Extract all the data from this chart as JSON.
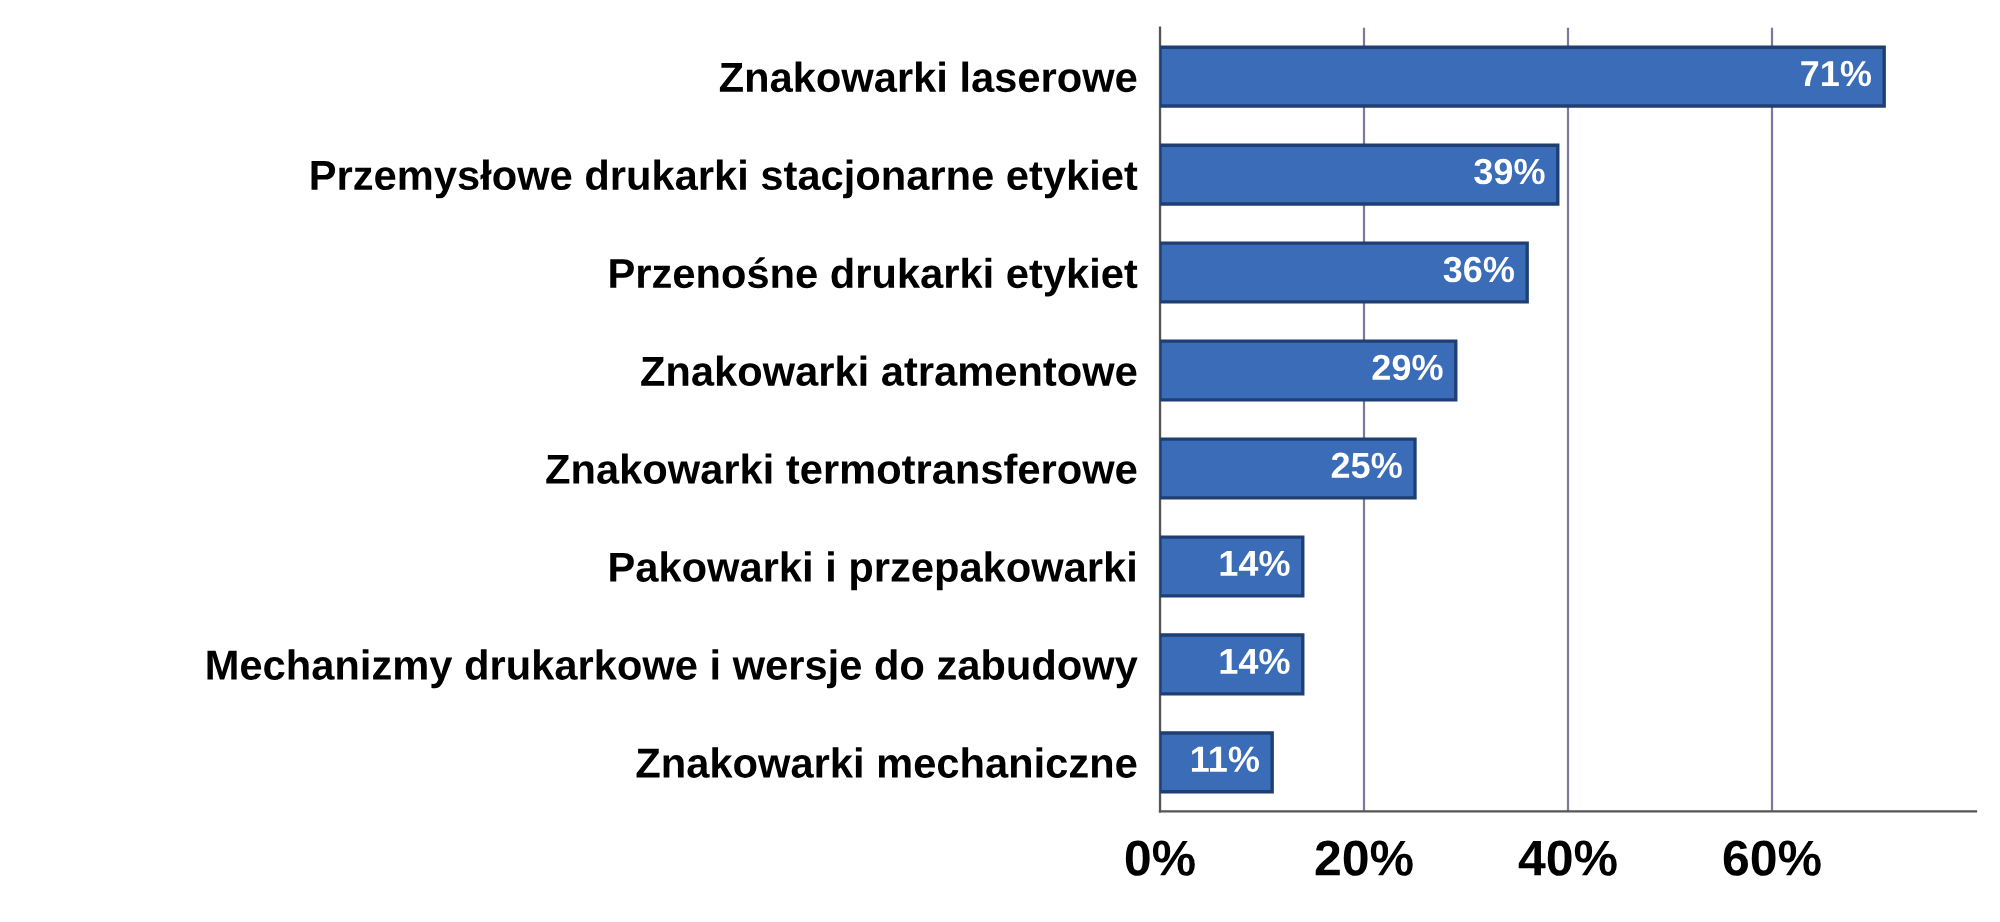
{
  "chart_data": {
    "type": "bar",
    "orientation": "horizontal",
    "categories": [
      "Znakowarki laserowe",
      "Przemysłowe drukarki stacjonarne etykiet",
      "Przenośne drukarki etykiet",
      "Znakowarki atramentowe",
      "Znakowarki termotransferowe",
      "Pakowarki i przepakowarki",
      "Mechanizmy drukarkowe i wersje do zabudowy",
      "Znakowarki mechaniczne"
    ],
    "values": [
      71,
      39,
      36,
      29,
      25,
      14,
      14,
      11
    ],
    "value_labels": [
      "71%",
      "39%",
      "36%",
      "29%",
      "25%",
      "14%",
      "14%",
      "11%"
    ],
    "color": "#3b6cb8",
    "xlim": [
      0,
      80
    ],
    "xticks": [
      {
        "value": 0,
        "label": "0%"
      },
      {
        "value": 20,
        "label": "20%"
      },
      {
        "value": 40,
        "label": "40%"
      },
      {
        "value": 60,
        "label": "60%"
      }
    ],
    "grid": "x"
  }
}
